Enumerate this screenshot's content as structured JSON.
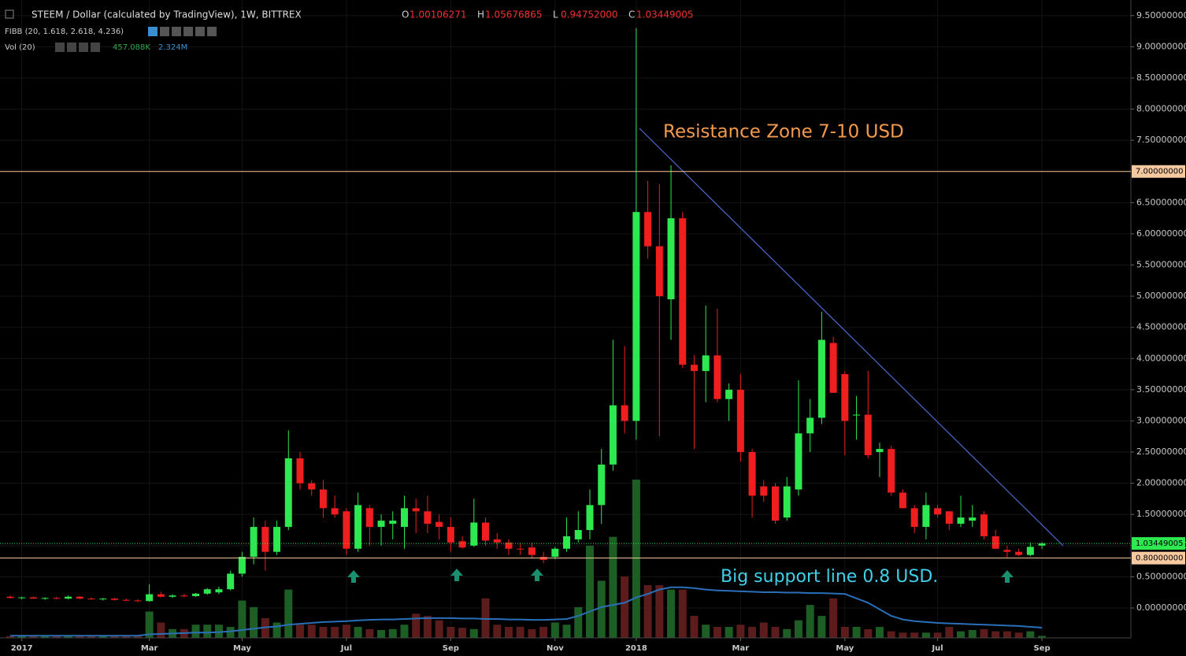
{
  "chart_data": {
    "type": "candlestick",
    "title": "STEEM / Dollar (calculated by TradingView), 1W, BITTREX",
    "ohlc_header": [
      {
        "key": "O",
        "value": "1.00106271"
      },
      {
        "key": "H",
        "value": "1.05676865"
      },
      {
        "key": "L",
        "value": "0.94752000"
      },
      {
        "key": "C",
        "value": "1.03449005"
      }
    ],
    "indicators": [
      {
        "name": "FIBB (20, 1.618, 2.618, 4.236)"
      },
      {
        "name": "Vol (20)",
        "values": [
          "457.088K",
          "2.324M"
        ]
      }
    ],
    "annotations": [
      "Resistance Zone 7-10 USD",
      "Big support line 0.8 USD."
    ],
    "categories": [
      null,
      "2017",
      null,
      null,
      null,
      null,
      null,
      null,
      null,
      null,
      null,
      null,
      "Mar",
      null,
      null,
      null,
      null,
      null,
      null,
      null,
      "May",
      null,
      null,
      null,
      null,
      null,
      null,
      null,
      null,
      "Jul",
      null,
      null,
      null,
      null,
      null,
      null,
      null,
      null,
      "Sep",
      null,
      null,
      null,
      null,
      null,
      null,
      null,
      null,
      "Nov",
      null,
      null,
      null,
      null,
      null,
      null,
      "2018",
      null,
      null,
      null,
      null,
      null,
      null,
      null,
      null,
      "Mar",
      null,
      null,
      null,
      null,
      null,
      null,
      null,
      null,
      "May",
      null,
      null,
      null,
      null,
      null,
      null,
      null,
      "Jul",
      null,
      null,
      null,
      null,
      null,
      null,
      null,
      null,
      "Sep"
    ],
    "open": [
      0.18,
      0.16,
      0.17,
      0.15,
      0.16,
      0.15,
      0.18,
      0.15,
      0.14,
      0.15,
      0.13,
      0.12,
      0.11,
      0.22,
      0.18,
      0.2,
      0.19,
      0.23,
      0.25,
      0.3,
      0.55,
      0.82,
      1.3,
      0.9,
      1.3,
      2.4,
      2.0,
      1.9,
      1.6,
      1.55,
      0.95,
      1.6,
      1.3,
      1.35,
      1.3,
      1.6,
      1.55,
      1.38,
      1.3,
      1.07,
      1.0,
      1.37,
      1.1,
      1.05,
      0.95,
      0.97,
      0.82,
      0.82,
      0.95,
      1.1,
      1.25,
      1.65,
      2.3,
      3.25,
      3.0,
      6.35,
      5.8,
      4.95,
      6.25,
      3.9,
      3.8,
      4.05,
      3.35,
      3.5,
      2.5,
      1.95,
      1.95,
      1.45,
      1.9,
      2.8,
      3.05,
      4.25,
      3.75,
      3.1,
      3.1,
      2.5,
      2.55,
      1.85,
      1.6,
      1.3,
      1.6,
      1.55,
      1.35,
      1.4,
      1.5,
      1.15,
      0.93,
      0.9,
      0.85,
      1.00106271
    ],
    "high": [
      0.2,
      0.18,
      0.18,
      0.17,
      0.18,
      0.2,
      0.19,
      0.17,
      0.16,
      0.16,
      0.15,
      0.14,
      0.38,
      0.26,
      0.22,
      0.23,
      0.24,
      0.32,
      0.34,
      0.6,
      0.9,
      1.45,
      1.4,
      1.4,
      2.85,
      2.5,
      2.05,
      2.05,
      1.8,
      1.6,
      1.85,
      1.65,
      1.5,
      1.55,
      1.8,
      1.75,
      1.8,
      1.5,
      1.45,
      1.15,
      1.75,
      1.45,
      1.2,
      1.1,
      1.05,
      1.05,
      0.9,
      0.98,
      1.45,
      1.55,
      1.9,
      2.55,
      4.3,
      4.2,
      9.3,
      6.85,
      6.8,
      7.1,
      6.35,
      4.05,
      4.85,
      4.8,
      3.6,
      3.75,
      2.55,
      2.05,
      2.0,
      2.1,
      3.65,
      3.35,
      4.75,
      4.35,
      3.8,
      3.4,
      3.8,
      2.65,
      2.6,
      1.9,
      1.65,
      1.85,
      1.65,
      1.55,
      1.8,
      1.65,
      1.55,
      1.25,
      1.0,
      0.95,
      1.05,
      1.05676865
    ],
    "low": [
      0.15,
      0.14,
      0.15,
      0.13,
      0.14,
      0.14,
      0.14,
      0.13,
      0.12,
      0.12,
      0.11,
      0.1,
      0.1,
      0.17,
      0.16,
      0.17,
      0.18,
      0.21,
      0.22,
      0.28,
      0.5,
      0.7,
      0.6,
      0.85,
      1.25,
      1.9,
      1.8,
      1.45,
      1.45,
      0.85,
      0.9,
      1.0,
      1.0,
      1.1,
      0.95,
      1.2,
      1.2,
      1.1,
      0.9,
      0.95,
      0.98,
      1.0,
      0.95,
      0.85,
      0.85,
      0.8,
      0.72,
      0.78,
      0.9,
      1.05,
      1.1,
      1.35,
      2.2,
      2.8,
      2.7,
      5.6,
      2.75,
      4.3,
      3.85,
      2.55,
      3.3,
      3.3,
      3.0,
      2.35,
      1.45,
      1.7,
      1.35,
      1.4,
      1.8,
      2.5,
      2.95,
      3.45,
      2.45,
      2.7,
      2.4,
      2.1,
      1.8,
      1.6,
      1.2,
      1.1,
      1.45,
      1.25,
      1.3,
      1.3,
      1.1,
      0.95,
      0.8,
      0.83,
      0.83,
      0.94752
    ],
    "close": [
      0.16,
      0.17,
      0.15,
      0.16,
      0.15,
      0.18,
      0.15,
      0.14,
      0.15,
      0.13,
      0.12,
      0.11,
      0.22,
      0.18,
      0.2,
      0.19,
      0.23,
      0.3,
      0.3,
      0.55,
      0.82,
      1.3,
      0.9,
      1.3,
      2.4,
      2.0,
      1.9,
      1.6,
      1.5,
      0.95,
      1.65,
      1.3,
      1.4,
      1.4,
      1.6,
      1.55,
      1.35,
      1.3,
      1.05,
      0.97,
      1.37,
      1.08,
      1.05,
      0.95,
      0.94,
      0.85,
      0.77,
      0.95,
      1.15,
      1.25,
      1.65,
      2.3,
      3.25,
      3.0,
      6.35,
      5.8,
      5.0,
      6.25,
      3.9,
      3.8,
      4.05,
      3.35,
      3.5,
      2.5,
      1.8,
      1.8,
      1.4,
      1.95,
      2.8,
      3.05,
      4.3,
      3.45,
      3.0,
      3.1,
      2.45,
      2.55,
      1.85,
      1.6,
      1.3,
      1.65,
      1.5,
      1.35,
      1.45,
      1.45,
      1.15,
      0.95,
      0.9,
      0.85,
      0.98,
      1.03449005
    ],
    "volume": [
      0.4,
      0.4,
      0.4,
      0.4,
      0.4,
      0.4,
      0.4,
      0.4,
      0.4,
      0.4,
      0.4,
      0.4,
      6,
      3.5,
      2,
      2,
      3,
      3,
      3,
      2.5,
      8.5,
      7,
      4.5,
      3.5,
      11,
      3,
      3,
      2.5,
      2.5,
      3,
      2.5,
      2,
      1.8,
      2,
      3,
      5.5,
      5,
      4,
      2.5,
      2.3,
      2,
      9,
      3,
      2.5,
      2.5,
      2,
      2.5,
      3.5,
      3,
      7,
      21,
      13,
      23,
      14,
      36,
      12,
      12,
      11,
      11,
      5,
      3,
      2.5,
      2.5,
      3,
      2.5,
      3.5,
      2.5,
      2,
      4,
      7.5,
      5,
      9,
      2.5,
      2.5,
      2,
      2.5,
      1.5,
      1.2,
      1.2,
      1.2,
      1.2,
      2.5,
      1.5,
      1.8,
      2,
      1.5,
      1.5,
      1.2,
      1.5,
      0.457088
    ],
    "volume_ma": [
      0.5,
      0.5,
      0.5,
      0.5,
      0.5,
      0.5,
      0.5,
      0.5,
      0.5,
      0.5,
      0.5,
      0.5,
      0.8,
      0.9,
      1,
      1.1,
      1.2,
      1.2,
      1.3,
      1.5,
      1.8,
      2.1,
      2.4,
      2.6,
      3.0,
      3.2,
      3.4,
      3.6,
      3.7,
      3.8,
      4.0,
      4.1,
      4.2,
      4.2,
      4.3,
      4.4,
      4.5,
      4.5,
      4.5,
      4.4,
      4.4,
      4.3,
      4.3,
      4.2,
      4.2,
      4.1,
      4.1,
      4.2,
      4.3,
      5,
      6,
      7,
      7.5,
      8,
      9.2,
      10,
      11,
      11.5,
      11.5,
      11.3,
      11,
      10.8,
      10.7,
      10.6,
      10.5,
      10.4,
      10.4,
      10.3,
      10.3,
      10.2,
      10.2,
      10.1,
      10,
      9,
      8,
      6.5,
      5,
      4.2,
      3.8,
      3.6,
      3.4,
      3.3,
      3.2,
      3.1,
      3.0,
      2.9,
      2.8,
      2.7,
      2.5,
      2.324
    ],
    "volume_lim": [
      0,
      50
    ],
    "up_color": "#2ee84f",
    "down_color": "#f01e1e",
    "volume_up_color": "#1d5e25",
    "volume_down_color": "#5c1c1c",
    "volume_ma_color": "#2a6fb8",
    "ylim": [
      -0.48,
      9.75
    ],
    "yticks": [
      {
        "value": 0,
        "label": "0.00000000"
      },
      {
        "value": 0.5,
        "label": "0.50000000"
      },
      {
        "value": 1,
        "label": "1.00000000"
      },
      {
        "value": 1.5,
        "label": "1.50000000"
      },
      {
        "value": 2,
        "label": "2.00000000"
      },
      {
        "value": 2.5,
        "label": "2.50000000"
      },
      {
        "value": 3,
        "label": "3.00000000"
      },
      {
        "value": 3.5,
        "label": "3.50000000"
      },
      {
        "value": 4,
        "label": "4.00000000"
      },
      {
        "value": 4.5,
        "label": "4.50000000"
      },
      {
        "value": 5,
        "label": "5.00000000"
      },
      {
        "value": 5.5,
        "label": "5.50000000"
      },
      {
        "value": 6,
        "label": "6.00000000"
      },
      {
        "value": 6.5,
        "label": "6.50000000"
      },
      {
        "value": 7.5,
        "label": "7.50000000"
      },
      {
        "value": 8,
        "label": "8.00000000"
      },
      {
        "value": 8.5,
        "label": "8.50000000"
      },
      {
        "value": 9,
        "label": "9.00000000"
      },
      {
        "value": 9.5,
        "label": "9.50000000"
      }
    ],
    "hlines": [
      {
        "value": 7,
        "label": "7.00000000",
        "color": "#f7c9a0"
      },
      {
        "value": 0.8,
        "label": "0.80000000",
        "color": "#f7c9a0"
      }
    ],
    "last_price": {
      "value": 1.03449005,
      "label": "1.03449005",
      "color": "#2ee84f"
    },
    "grid": true
  }
}
